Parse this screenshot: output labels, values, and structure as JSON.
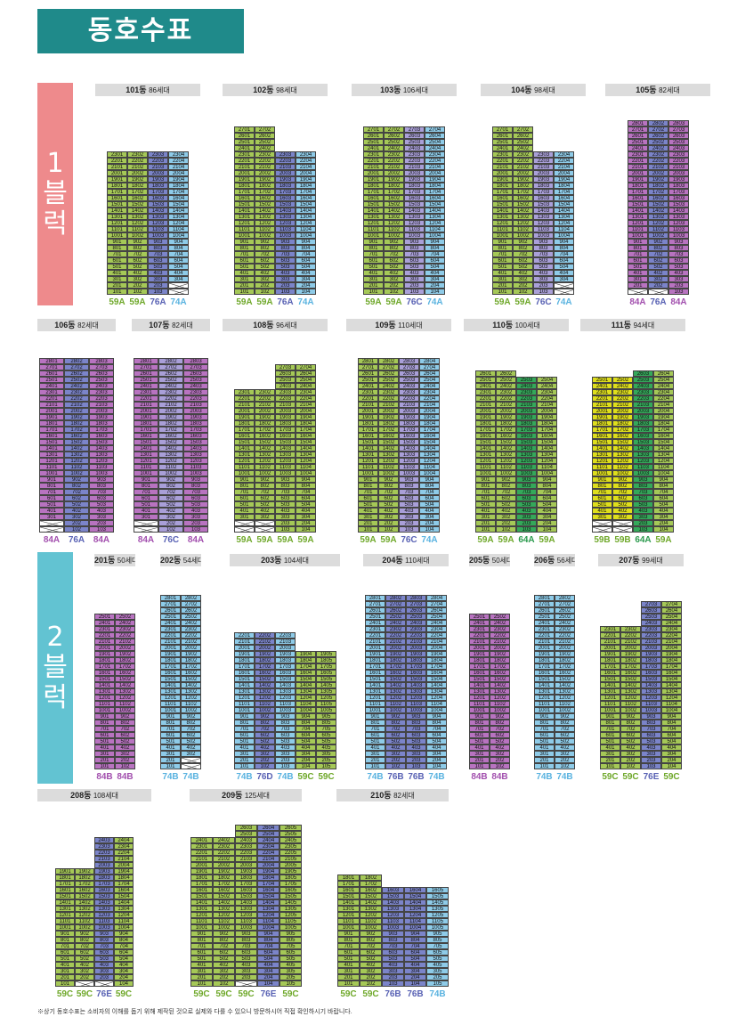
{
  "page": {
    "title": "동호수표",
    "footnote": "※상기 동호수표는 소비자의 이해를 돕기 위해 제작된 것으로 실제와 다를 수 있으니 방문하시어 직접 확인하시기 바랍니다."
  },
  "colors": {
    "title_bg": "#1f8a8a",
    "block1": "#ee8a8c",
    "block2": "#62c3d2",
    "59A": "#a5c857",
    "59B": "#dede1c",
    "59C": "#a5c857",
    "64A": "#34a85a",
    "74A": "#8ecbe8",
    "74B": "#8ecbe8",
    "76A": "#7b84c9",
    "76B": "#7b84c9",
    "76C": "#a99fd8",
    "76E": "#7b84c9",
    "84A": "#b873c0",
    "84B": "#b873c0",
    "type_59": "#6fa82a",
    "type_64": "#2b9a4d",
    "type_74": "#5ab3e0",
    "type_76": "#5962b4",
    "type_84": "#a24fae"
  },
  "blocks": [
    {
      "line1": "1",
      "line2": "블",
      "line3": "럭"
    },
    {
      "line1": "2",
      "line2": "블",
      "line3": "럭"
    }
  ],
  "buildings": [
    {
      "name": "101동",
      "count": "86세대",
      "top": 23,
      "types": [
        "59A",
        "59A",
        "76A",
        "74A"
      ],
      "missing": [
        [
          1,
          3
        ],
        [
          2,
          3
        ]
      ]
    },
    {
      "name": "102동",
      "count": "98세대",
      "top": 27,
      "types": [
        "59A",
        "59A",
        "76A",
        "74A"
      ],
      "tops": [
        27,
        27,
        23,
        23
      ],
      "missing": []
    },
    {
      "name": "103동",
      "count": "106세대",
      "top": 27,
      "types": [
        "59A",
        "59A",
        "76C",
        "74A"
      ],
      "missing": []
    },
    {
      "name": "104동",
      "count": "98세대",
      "top": 27,
      "types": [
        "59A",
        "59A",
        "76C",
        "74A"
      ],
      "tops": [
        27,
        27,
        23,
        23
      ],
      "missing": [
        [
          1,
          3
        ],
        [
          2,
          3
        ]
      ]
    },
    {
      "name": "105동",
      "count": "82세대",
      "top": 28,
      "types": [
        "84A",
        "76A",
        "84A"
      ],
      "missing": [
        [
          1,
          0
        ],
        [
          1,
          1
        ]
      ]
    },
    {
      "name": "106동",
      "count": "82세대",
      "top": 28,
      "types": [
        "84A",
        "76A",
        "84A"
      ],
      "missing": [
        [
          1,
          0
        ],
        [
          2,
          0
        ]
      ]
    },
    {
      "name": "107동",
      "count": "82세대",
      "top": 28,
      "types": [
        "84A",
        "76C",
        "84A"
      ],
      "missing": [
        [
          1,
          0
        ],
        [
          2,
          0
        ]
      ]
    },
    {
      "name": "108동",
      "count": "96세대",
      "top": 27,
      "types": [
        "59A",
        "59A",
        "59A",
        "59A"
      ],
      "tops": [
        23,
        23,
        27,
        27
      ],
      "missing": [
        [
          1,
          0
        ],
        [
          1,
          1
        ],
        [
          2,
          0
        ],
        [
          2,
          1
        ]
      ]
    },
    {
      "name": "109동",
      "count": "110세대",
      "top": 28,
      "types": [
        "59A",
        "59A",
        "76C",
        "74A"
      ],
      "missing": []
    },
    {
      "name": "110동",
      "count": "100세대",
      "top": 26,
      "types": [
        "59A",
        "59A",
        "64A",
        "59A"
      ],
      "tops": [
        26,
        26,
        25,
        25
      ],
      "missing": []
    },
    {
      "name": "111동",
      "count": "94세대",
      "top": 26,
      "types": [
        "59B",
        "59B",
        "64A",
        "59A"
      ],
      "tops": [
        25,
        25,
        26,
        26
      ],
      "missing": [
        [
          1,
          0
        ],
        [
          1,
          1
        ],
        [
          2,
          0
        ],
        [
          2,
          1
        ]
      ]
    },
    {
      "name": "201동",
      "count": "50세대",
      "top": 25,
      "types": [
        "84B",
        "84B"
      ],
      "missing": []
    },
    {
      "name": "202동",
      "count": "54세대",
      "top": 28,
      "types": [
        "74B",
        "74B"
      ],
      "missing": [
        [
          1,
          1
        ],
        [
          2,
          1
        ]
      ]
    },
    {
      "name": "203동",
      "count": "104세대",
      "top": 22,
      "types": [
        "74B",
        "76D",
        "74B",
        "59C",
        "59C"
      ],
      "tops": [
        22,
        22,
        22,
        19,
        19
      ],
      "missing": []
    },
    {
      "name": "204동",
      "count": "110세대",
      "top": 28,
      "types": [
        "74B",
        "76B",
        "76B",
        "74B"
      ],
      "missing": []
    },
    {
      "name": "205동",
      "count": "50세대",
      "top": 25,
      "types": [
        "84B",
        "84B"
      ],
      "missing": []
    },
    {
      "name": "206동",
      "count": "56세대",
      "top": 28,
      "types": [
        "74B",
        "74B"
      ],
      "missing": []
    },
    {
      "name": "207동",
      "count": "99세대",
      "top": 27,
      "types": [
        "59C",
        "59C",
        "76E",
        "59C"
      ],
      "tops": [
        23,
        23,
        27,
        27
      ],
      "missing": []
    },
    {
      "name": "208동",
      "count": "108세대",
      "top": 24,
      "types": [
        "59C",
        "59C",
        "76E",
        "59C"
      ],
      "tops": [
        19,
        19,
        24,
        24
      ],
      "missing": [
        [
          1,
          1
        ],
        [
          1,
          2
        ]
      ]
    },
    {
      "name": "209동",
      "count": "125세대",
      "top": 26,
      "types": [
        "59C",
        "59C",
        "59C",
        "76E",
        "59C"
      ],
      "tops": [
        24,
        24,
        26,
        26,
        26
      ],
      "missing": [
        [
          1,
          2
        ]
      ]
    },
    {
      "name": "210동",
      "count": "82세대",
      "top": 18,
      "types": [
        "59C",
        "59C",
        "76B",
        "76B",
        "74B"
      ],
      "tops": [
        18,
        18,
        16,
        16,
        16
      ],
      "missing": []
    }
  ]
}
